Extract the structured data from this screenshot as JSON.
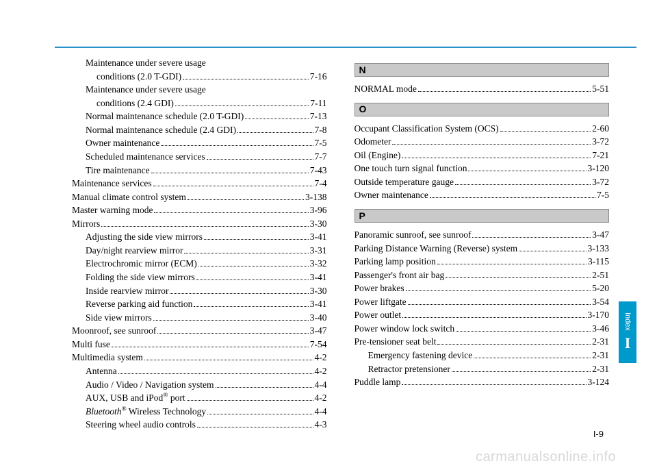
{
  "colors": {
    "rule": "#2a8fc9",
    "tab_bg": "#0099cc",
    "tab_fg": "#ffffff",
    "letter_bg": "#c9c9c9",
    "watermark": "#d8d8d8",
    "text": "#000000"
  },
  "left": {
    "items": [
      {
        "sub": true,
        "wrap": true,
        "line1": "Maintenance under severe usage",
        "line2": "conditions (2.0 T-GDI)",
        "pg": "7-16"
      },
      {
        "sub": true,
        "wrap": true,
        "line1": "Maintenance under severe usage",
        "line2": "conditions (2.4 GDI)",
        "pg": "7-11"
      },
      {
        "sub": true,
        "label": "Normal maintenance schedule (2.0 T-GDI)",
        "pg": "7-13"
      },
      {
        "sub": true,
        "label": "Normal maintenance schedule (2.4 GDI)",
        "pg": "7-8"
      },
      {
        "sub": true,
        "label": "Owner maintenance",
        "pg": "7-5"
      },
      {
        "sub": true,
        "label": "Scheduled maintenance services",
        "pg": "7-7"
      },
      {
        "sub": true,
        "label": "Tire maintenance",
        "pg": "7-43"
      },
      {
        "label": "Maintenance services",
        "pg": "7-4"
      },
      {
        "label": "Manual climate control system",
        "pg": "3-138"
      },
      {
        "label": "Master warning mode",
        "pg": "3-96"
      },
      {
        "label": "Mirrors",
        "pg": "3-30"
      },
      {
        "sub": true,
        "label": "Adjusting the side view mirrors",
        "pg": "3-41"
      },
      {
        "sub": true,
        "label": "Day/night rearview mirror",
        "pg": "3-31"
      },
      {
        "sub": true,
        "label": "Electrochromic mirror (ECM)",
        "pg": "3-32"
      },
      {
        "sub": true,
        "label": "Folding the side view mirrors",
        "pg": "3-41"
      },
      {
        "sub": true,
        "label": "Inside rearview mirror",
        "pg": "3-30"
      },
      {
        "sub": true,
        "label": "Reverse parking aid function",
        "pg": "3-41"
      },
      {
        "sub": true,
        "label": "Side view mirrors",
        "pg": "3-40"
      },
      {
        "label": "Moonroof, see sunroof",
        "pg": "3-47"
      },
      {
        "label": "Multi fuse",
        "pg": "7-54"
      },
      {
        "label": "Multimedia system",
        "pg": "4-2"
      },
      {
        "sub": true,
        "label": "Antenna",
        "pg": "4-2"
      },
      {
        "sub": true,
        "label": "Audio / Video / Navigation system",
        "pg": "4-4"
      },
      {
        "sub": true,
        "html": true,
        "label": "AUX, USB and iPod<sup>®</sup> port",
        "pg": "4-2"
      },
      {
        "sub": true,
        "html": true,
        "label": "<span class=\"italic\">Bluetooth</span><sup>®</sup> Wireless Technology",
        "pg": "4-4"
      },
      {
        "sub": true,
        "label": "Steering wheel audio controls",
        "pg": "4-3"
      }
    ]
  },
  "right": {
    "sections": [
      {
        "letter": "N",
        "items": [
          {
            "label": "NORMAL mode",
            "pg": "5-51"
          }
        ]
      },
      {
        "letter": "O",
        "items": [
          {
            "label": "Occupant Classification System (OCS)",
            "pg": "2-60"
          },
          {
            "label": "Odometer",
            "pg": "3-72"
          },
          {
            "label": "Oil (Engine)",
            "pg": "7-21"
          },
          {
            "label": "One touch turn signal function",
            "pg": "3-120"
          },
          {
            "label": "Outside temperature gauge",
            "pg": "3-72"
          },
          {
            "label": "Owner maintenance",
            "pg": "7-5"
          }
        ]
      },
      {
        "letter": "P",
        "items": [
          {
            "label": "Panoramic sunroof, see sunroof",
            "pg": "3-47"
          },
          {
            "label": "Parking Distance Warning (Reverse) system",
            "pg": "3-133"
          },
          {
            "label": "Parking lamp position",
            "pg": "3-115"
          },
          {
            "label": "Passenger's front air bag",
            "pg": "2-51"
          },
          {
            "label": "Power brakes",
            "pg": "5-20"
          },
          {
            "label": "Power liftgate",
            "pg": "3-54"
          },
          {
            "label": "Power outlet",
            "pg": "3-170"
          },
          {
            "label": "Power window lock switch",
            "pg": "3-46"
          },
          {
            "label": "Pre-tensioner seat belt",
            "pg": "2-31"
          },
          {
            "sub": true,
            "label": "Emergency fastening device",
            "pg": "2-31"
          },
          {
            "sub": true,
            "label": "Retractor pretensioner",
            "pg": "2-31"
          },
          {
            "label": "Puddle lamp",
            "pg": "3-124"
          }
        ]
      }
    ]
  },
  "tab": {
    "label": "Index",
    "letter": "I"
  },
  "page_num": "I-9",
  "watermark": "carmanualsonline.info"
}
